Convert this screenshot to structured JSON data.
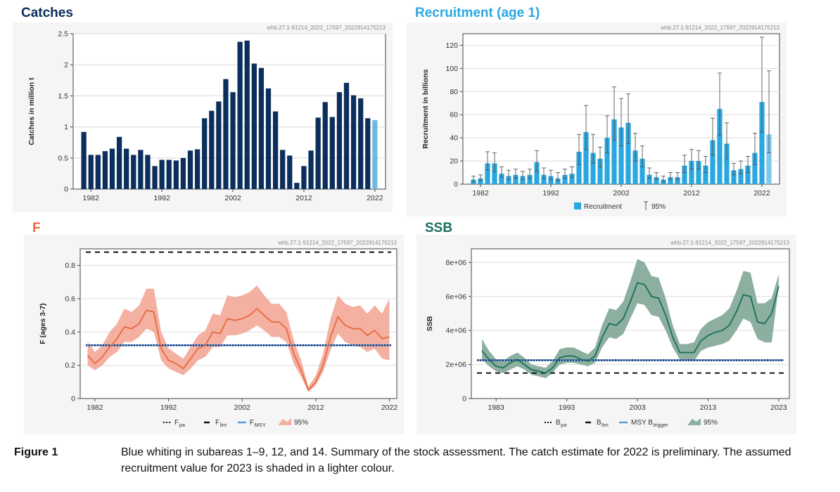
{
  "source_id": "whb.27.1-91214_2022_17597_2022914175213",
  "caption": {
    "label": "Figure 1",
    "text": "Blue whiting in subareas 1–9, 12, and 14. Summary of the stock assessment. The catch estimate for 2022 is preliminary. The assumed recruitment value for 2023 is shaded in a lighter colour."
  },
  "colors": {
    "catch_bar": "#0b2e5c",
    "catch_bar_prelim": "#6fb8de",
    "recruit_bar": "#2aa7df",
    "f_line": "#e8693f",
    "f_band": "#f2a290",
    "ssb_line": "#1a6e5e",
    "ssb_band": "#86ab9a",
    "ref_dotted": "#1a2f6b",
    "ref_blue": "#5b9bd5",
    "title_catches": "#0b2e5c",
    "title_recruitment": "#2aa7df",
    "title_f": "#e8693f",
    "title_ssb": "#1a6e5e"
  },
  "chart_data": [
    {
      "id": "catches",
      "type": "bar",
      "title": "Catches",
      "ylabel": "Catches in million t",
      "xlabel": "",
      "ylim": [
        0,
        2.5
      ],
      "yticks": [
        "0",
        "0.5",
        "1",
        "1.5",
        "2",
        "2.5"
      ],
      "xticks": [
        "1982",
        "1992",
        "2002",
        "2012",
        "2022"
      ],
      "grid": true,
      "years": [
        1981,
        1982,
        1983,
        1984,
        1985,
        1986,
        1987,
        1988,
        1989,
        1990,
        1991,
        1992,
        1993,
        1994,
        1995,
        1996,
        1997,
        1998,
        1999,
        2000,
        2001,
        2002,
        2003,
        2004,
        2005,
        2006,
        2007,
        2008,
        2009,
        2010,
        2011,
        2012,
        2013,
        2014,
        2015,
        2016,
        2017,
        2018,
        2019,
        2020,
        2021,
        2022
      ],
      "values": [
        0.92,
        0.55,
        0.55,
        0.61,
        0.65,
        0.84,
        0.65,
        0.55,
        0.63,
        0.55,
        0.37,
        0.47,
        0.47,
        0.46,
        0.5,
        0.62,
        0.64,
        1.14,
        1.26,
        1.41,
        1.77,
        1.56,
        2.37,
        2.39,
        2.02,
        1.95,
        1.62,
        1.25,
        0.63,
        0.54,
        0.1,
        0.37,
        0.62,
        1.15,
        1.4,
        1.16,
        1.56,
        1.71,
        1.51,
        1.46,
        1.14,
        1.11
      ],
      "preliminary_year": 2022
    },
    {
      "id": "recruitment",
      "type": "bar",
      "title": "Recruitment (age 1)",
      "ylabel": "Recruitment in billions",
      "xlabel": "",
      "ylim": [
        0,
        130
      ],
      "yticks": [
        "0",
        "20",
        "40",
        "60",
        "80",
        "100",
        "120"
      ],
      "xticks": [
        "1982",
        "1992",
        "2002",
        "2012",
        "2022"
      ],
      "grid": true,
      "legend": [
        "Recruitment",
        "95%"
      ],
      "legend_position": "bottom",
      "years": [
        1981,
        1982,
        1983,
        1984,
        1985,
        1986,
        1987,
        1988,
        1989,
        1990,
        1991,
        1992,
        1993,
        1994,
        1995,
        1996,
        1997,
        1998,
        1999,
        2000,
        2001,
        2002,
        2003,
        2004,
        2005,
        2006,
        2007,
        2008,
        2009,
        2010,
        2011,
        2012,
        2013,
        2014,
        2015,
        2016,
        2017,
        2018,
        2019,
        2020,
        2021,
        2022,
        2023
      ],
      "values": [
        4,
        5,
        18,
        18,
        9,
        7,
        8,
        7,
        8,
        19,
        8,
        7,
        5,
        8,
        9,
        28,
        45,
        27,
        22,
        40,
        56,
        49,
        53,
        29,
        22,
        8,
        6,
        4,
        6,
        6,
        16,
        20,
        20,
        16,
        38,
        65,
        35,
        12,
        13,
        16,
        27,
        71,
        43
      ],
      "lower": [
        2,
        3,
        12,
        11,
        6,
        4,
        5,
        4,
        5,
        11,
        5,
        4,
        3,
        5,
        6,
        17,
        30,
        18,
        15,
        27,
        38,
        33,
        35,
        20,
        15,
        5,
        4,
        2,
        4,
        4,
        10,
        13,
        13,
        10,
        25,
        42,
        22,
        8,
        9,
        10,
        17,
        45,
        27
      ],
      "upper": [
        7,
        8,
        28,
        27,
        15,
        12,
        13,
        11,
        13,
        29,
        14,
        12,
        10,
        13,
        15,
        43,
        68,
        43,
        32,
        59,
        84,
        74,
        78,
        44,
        33,
        14,
        10,
        7,
        10,
        10,
        25,
        30,
        29,
        24,
        57,
        96,
        53,
        18,
        20,
        24,
        44,
        127,
        98
      ]
    },
    {
      "id": "fishing_mortality",
      "type": "line",
      "title": "F",
      "ylabel": "F (ages 3-7)",
      "xlabel": "",
      "ylim": [
        0,
        0.9
      ],
      "yticks": [
        "0",
        "0.2",
        "0.4",
        "0.6",
        "0.8"
      ],
      "xticks": [
        "1982",
        "1992",
        "2002",
        "2012",
        "2022"
      ],
      "grid": true,
      "legend_position": "bottom",
      "years": [
        1981,
        1982,
        1983,
        1984,
        1985,
        1986,
        1987,
        1988,
        1989,
        1990,
        1991,
        1992,
        1993,
        1994,
        1995,
        1996,
        1997,
        1998,
        1999,
        2000,
        2001,
        2002,
        2003,
        2004,
        2005,
        2006,
        2007,
        2008,
        2009,
        2010,
        2011,
        2012,
        2013,
        2014,
        2015,
        2016,
        2017,
        2018,
        2019,
        2020,
        2021,
        2022
      ],
      "values": [
        0.26,
        0.21,
        0.25,
        0.31,
        0.36,
        0.43,
        0.42,
        0.45,
        0.53,
        0.52,
        0.3,
        0.23,
        0.21,
        0.18,
        0.24,
        0.3,
        0.32,
        0.4,
        0.39,
        0.48,
        0.47,
        0.48,
        0.5,
        0.54,
        0.5,
        0.46,
        0.46,
        0.42,
        0.27,
        0.17,
        0.05,
        0.1,
        0.2,
        0.37,
        0.49,
        0.44,
        0.42,
        0.42,
        0.38,
        0.41,
        0.36,
        0.37
      ],
      "lower": [
        0.2,
        0.17,
        0.2,
        0.25,
        0.28,
        0.34,
        0.34,
        0.37,
        0.42,
        0.4,
        0.23,
        0.18,
        0.16,
        0.14,
        0.18,
        0.23,
        0.25,
        0.31,
        0.31,
        0.38,
        0.38,
        0.39,
        0.41,
        0.44,
        0.41,
        0.37,
        0.37,
        0.34,
        0.21,
        0.13,
        0.04,
        0.08,
        0.16,
        0.29,
        0.39,
        0.34,
        0.32,
        0.31,
        0.28,
        0.3,
        0.24,
        0.23
      ],
      "upper": [
        0.34,
        0.28,
        0.32,
        0.4,
        0.45,
        0.54,
        0.52,
        0.56,
        0.66,
        0.66,
        0.4,
        0.3,
        0.27,
        0.24,
        0.31,
        0.38,
        0.41,
        0.51,
        0.5,
        0.62,
        0.61,
        0.62,
        0.64,
        0.68,
        0.62,
        0.57,
        0.57,
        0.52,
        0.35,
        0.23,
        0.07,
        0.14,
        0.27,
        0.48,
        0.62,
        0.57,
        0.55,
        0.56,
        0.51,
        0.56,
        0.51,
        0.6
      ],
      "reference_points": {
        "Fpa": 0.32,
        "Flim": 0.88,
        "FMSY": 0.32
      },
      "legend": [
        {
          "key": "Fpa",
          "base": "F",
          "sub": "pa"
        },
        {
          "key": "Flim",
          "base": "F",
          "sub": "lim"
        },
        {
          "key": "FMSY",
          "base": "F",
          "sub": "MSY"
        },
        {
          "key": "ci",
          "base": "95%",
          "sub": ""
        }
      ]
    },
    {
      "id": "ssb",
      "type": "line",
      "title": "SSB",
      "ylabel": "SSB",
      "xlabel": "",
      "ylim": [
        0,
        8800000
      ],
      "yticks": [
        "0",
        "2e+06",
        "4e+06",
        "6e+06",
        "8e+06"
      ],
      "xticks": [
        "1983",
        "1993",
        "2003",
        "2013",
        "2023"
      ],
      "grid": true,
      "legend_position": "bottom",
      "years": [
        1981,
        1982,
        1983,
        1984,
        1985,
        1986,
        1987,
        1988,
        1989,
        1990,
        1991,
        1992,
        1993,
        1994,
        1995,
        1996,
        1997,
        1998,
        1999,
        2000,
        2001,
        2002,
        2003,
        2004,
        2005,
        2006,
        2007,
        2008,
        2009,
        2010,
        2011,
        2012,
        2013,
        2014,
        2015,
        2016,
        2017,
        2018,
        2019,
        2020,
        2021,
        2022,
        2023
      ],
      "values": [
        2800000,
        2300000,
        1900000,
        1800000,
        2100000,
        2300000,
        2000000,
        1700000,
        1600000,
        1500000,
        1800000,
        2400000,
        2500000,
        2500000,
        2300000,
        2200000,
        2500000,
        3600000,
        4400000,
        4300000,
        4700000,
        5700000,
        6800000,
        6700000,
        6000000,
        5900000,
        4900000,
        3600000,
        2700000,
        2700000,
        2700000,
        3400000,
        3700000,
        3900000,
        4000000,
        4300000,
        5100000,
        6100000,
        6000000,
        4500000,
        4400000,
        5000000,
        6600000
      ],
      "lower": [
        2300000,
        1900000,
        1600000,
        1500000,
        1700000,
        1900000,
        1700000,
        1400000,
        1300000,
        1200000,
        1500000,
        2000000,
        2100000,
        2100000,
        2000000,
        1900000,
        2100000,
        3000000,
        3600000,
        3500000,
        3800000,
        4700000,
        5600000,
        5500000,
        4900000,
        4800000,
        4000000,
        3000000,
        2300000,
        2200000,
        2200000,
        2800000,
        3000000,
        3100000,
        3200000,
        3400000,
        4000000,
        4700000,
        4500000,
        3500000,
        3300000,
        3300000,
        6600000
      ],
      "upper": [
        3500000,
        2800000,
        2300000,
        2200000,
        2500000,
        2700000,
        2400000,
        2000000,
        1900000,
        1800000,
        2200000,
        2900000,
        3000000,
        3000000,
        2800000,
        2600000,
        3000000,
        4300000,
        5300000,
        5200000,
        5700000,
        6900000,
        8200000,
        8000000,
        7200000,
        7100000,
        5900000,
        4300000,
        3200000,
        3200000,
        3300000,
        4100000,
        4500000,
        4700000,
        4900000,
        5300000,
        6300000,
        7500000,
        7400000,
        5600000,
        5600000,
        5900000,
        7300000
      ],
      "reference_points": {
        "Bpa": 2250000,
        "Blim": 1500000,
        "MSYBtrigger": 2250000
      },
      "legend": [
        {
          "key": "Bpa",
          "base": "B",
          "sub": "pa"
        },
        {
          "key": "Blim",
          "base": "B",
          "sub": "lim"
        },
        {
          "key": "MSYBtrigger",
          "base": "MSY B",
          "sub": "trigger"
        },
        {
          "key": "ci",
          "base": "95%",
          "sub": ""
        }
      ]
    }
  ]
}
